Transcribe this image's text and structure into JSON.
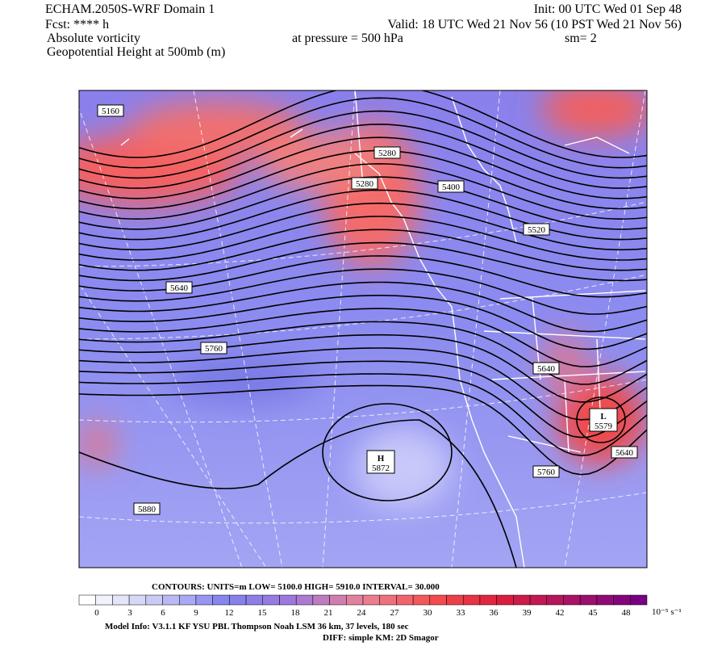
{
  "header": {
    "title": "ECHAM.2050S-WRF Domain 1",
    "forecast": "Fcst: **** h",
    "field_1": "Absolute vorticity",
    "field_2": "Geopotential Height at 500mb (m)",
    "init": "Init: 00 UTC Wed 01 Sep 48",
    "valid": "Valid: 18 UTC Wed 21 Nov 56 (10 PST Wed 21 Nov 56)",
    "pressure": "at pressure =  500 hPa",
    "smoothing": "sm= 2"
  },
  "map": {
    "contour_labels": [
      5160,
      5280,
      5280,
      5400,
      5520,
      5640,
      5760,
      5640,
      5640,
      5760,
      5880
    ],
    "centers": [
      {
        "symbol": "L",
        "value": 5579
      },
      {
        "symbol": "H",
        "value": 5872
      }
    ]
  },
  "colorbar": {
    "ticks": [
      0,
      3,
      6,
      9,
      12,
      15,
      18,
      21,
      24,
      27,
      30,
      33,
      36,
      39,
      42,
      45,
      48
    ],
    "units": "10⁻⁵ s⁻¹"
  },
  "footer": {
    "contours": "CONTOURS:  UNITS=m  LOW=   5100.0      HIGH=  5910.0      INTERVAL=     30.000",
    "model_info": "Model Info: V3.1.1    KF       YSU PBL   Thompson      Noah LSM   36 km,    37 levels,   180 sec",
    "diff": "DIFF: simple KM: 2D Smagor"
  }
}
